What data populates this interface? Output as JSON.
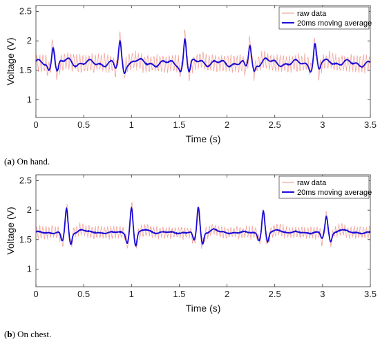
{
  "chart_data": [
    {
      "type": "line",
      "caption_letter": "a",
      "caption_text": "On hand.",
      "xlabel": "Time (s)",
      "ylabel": "Voltage (V)",
      "xlim": [
        0,
        3.5
      ],
      "ylim": [
        0.7,
        2.6
      ],
      "xticks": [
        "0",
        "0.5",
        "1",
        "1.5",
        "2",
        "2.5",
        "3",
        "3.5"
      ],
      "yticks": [
        "1",
        "1.5",
        "2",
        "2.5"
      ],
      "legend_position": "top-right",
      "legend": [
        "raw data",
        "20ms moving average"
      ],
      "colors": {
        "raw": "#f2a8a0",
        "avg": "#1a0bd6"
      },
      "baseline": 1.62,
      "oscillation_hz": 31,
      "raw_noise_amplitude": 0.13,
      "avg_ripple_amplitude": 0.04,
      "beats": [
        {
          "t": 0.18,
          "peak": 1.94,
          "trough": 1.43
        },
        {
          "t": 0.88,
          "peak": 1.96,
          "trough": 1.44
        },
        {
          "t": 1.56,
          "peak": 2.04,
          "trough": 1.41
        },
        {
          "t": 2.24,
          "peak": 1.93,
          "trough": 1.45
        },
        {
          "t": 2.92,
          "peak": 1.94,
          "trough": 1.46
        }
      ]
    },
    {
      "type": "line",
      "caption_letter": "b",
      "caption_text": "On chest.",
      "xlabel": "Time (s)",
      "ylabel": "Voltage (V)",
      "xlim": [
        0,
        3.5
      ],
      "ylim": [
        0.7,
        2.6
      ],
      "xticks": [
        "0",
        "0.5",
        "1",
        "1.5",
        "2",
        "2.5",
        "3",
        "3.5"
      ],
      "yticks": [
        "1",
        "1.5",
        "2",
        "2.5"
      ],
      "legend_position": "top-right",
      "legend": [
        "raw data",
        "20ms moving average"
      ],
      "colors": {
        "raw": "#f2a8a0",
        "avg": "#1a0bd6"
      },
      "baseline": 1.62,
      "oscillation_hz": 31,
      "raw_noise_amplitude": 0.09,
      "avg_ripple_amplitude": 0.012,
      "beats": [
        {
          "t": 0.32,
          "peak": 2.02,
          "trough": 1.35
        },
        {
          "t": 1.0,
          "peak": 2.04,
          "trough": 1.32
        },
        {
          "t": 1.7,
          "peak": 2.05,
          "trough": 1.36
        },
        {
          "t": 2.38,
          "peak": 1.98,
          "trough": 1.4
        },
        {
          "t": 3.04,
          "peak": 1.88,
          "trough": 1.43
        }
      ]
    }
  ]
}
